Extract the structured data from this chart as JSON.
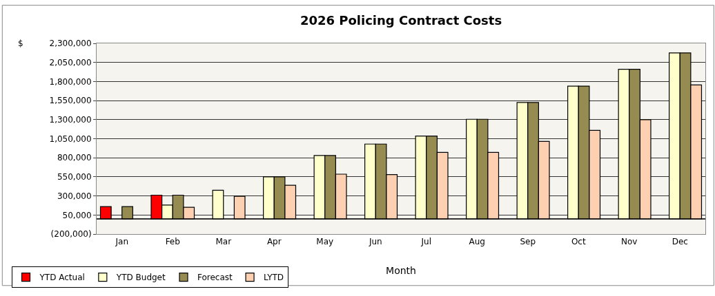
{
  "chart_data": {
    "type": "bar",
    "title": "2026 Policing Contract Costs",
    "xlabel": "Month",
    "ylabel": "$",
    "categories": [
      "Jan",
      "Feb",
      "Mar",
      "Apr",
      "May",
      "Jun",
      "Jul",
      "Aug",
      "Sep",
      "Oct",
      "Nov",
      "Dec"
    ],
    "series": [
      {
        "name": "YTD Actual",
        "color": "#ff0000",
        "values": [
          160000,
          310000,
          null,
          null,
          null,
          null,
          null,
          null,
          null,
          null,
          null,
          null
        ]
      },
      {
        "name": "YTD Budget",
        "color": "#ffffcc",
        "values": [
          null,
          180000,
          375000,
          550000,
          830000,
          980000,
          1085000,
          1305000,
          1525000,
          1740000,
          1960000,
          2175000
        ]
      },
      {
        "name": "Forecast",
        "color": "#968c52",
        "values": [
          160000,
          310000,
          null,
          550000,
          830000,
          980000,
          1085000,
          1305000,
          1525000,
          1740000,
          1960000,
          2175000
        ]
      },
      {
        "name": "LYTD",
        "color": "#fcd0b0",
        "values": [
          null,
          150000,
          295000,
          440000,
          585000,
          580000,
          870000,
          870000,
          1015000,
          1160000,
          1300000,
          1755000
        ]
      }
    ],
    "ylim": [
      -200000,
      2300000
    ],
    "yticks": [
      {
        "value": -200000,
        "label": "(200,000)"
      },
      {
        "value": 50000,
        "label": "50,000"
      },
      {
        "value": 300000,
        "label": "300,000"
      },
      {
        "value": 550000,
        "label": "550,000"
      },
      {
        "value": 800000,
        "label": "800,000"
      },
      {
        "value": 1050000,
        "label": "1,050,000"
      },
      {
        "value": 1300000,
        "label": "1,300,000"
      },
      {
        "value": 1550000,
        "label": "1,550,000"
      },
      {
        "value": 1800000,
        "label": "1,800,000"
      },
      {
        "value": 2050000,
        "label": "2,050,000"
      },
      {
        "value": 2300000,
        "label": "2,300,000"
      }
    ],
    "grid": "y",
    "legend": "bottom left"
  }
}
